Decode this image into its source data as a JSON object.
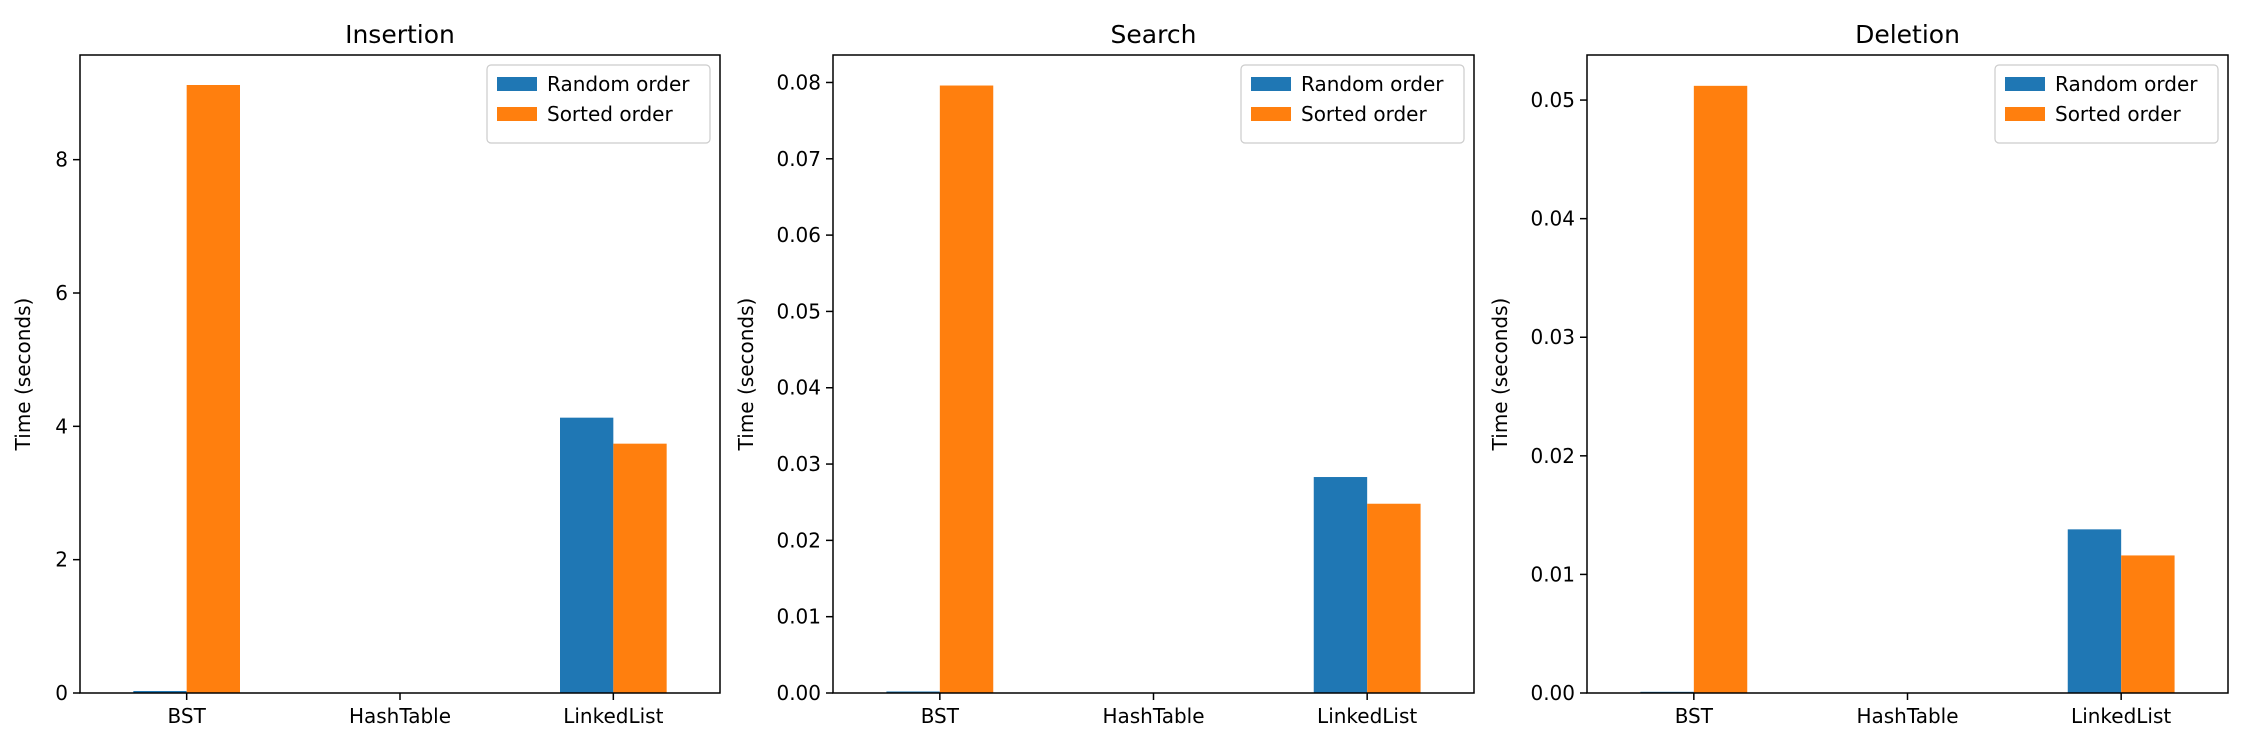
{
  "colors": {
    "random": "#1f77b4",
    "sorted": "#ff7f0e"
  },
  "chart_data": [
    {
      "type": "bar",
      "title": "Insertion",
      "xlabel": "",
      "ylabel": "Time (seconds)",
      "categories": [
        "BST",
        "HashTable",
        "LinkedList"
      ],
      "series": [
        {
          "name": "Random order",
          "values": [
            0.03,
            0.004,
            4.13
          ]
        },
        {
          "name": "Sorted order",
          "values": [
            9.12,
            0.004,
            3.74
          ]
        }
      ],
      "ylim": [
        0,
        9.57
      ],
      "yticks": [
        0,
        2,
        4,
        6,
        8
      ],
      "ytick_labels": [
        "0",
        "2",
        "4",
        "6",
        "8"
      ],
      "legend": "top-right",
      "grid": false
    },
    {
      "type": "bar",
      "title": "Search",
      "xlabel": "",
      "ylabel": "Time (seconds)",
      "categories": [
        "BST",
        "HashTable",
        "LinkedList"
      ],
      "series": [
        {
          "name": "Random order",
          "values": [
            0.0002,
            3e-05,
            0.0283
          ]
        },
        {
          "name": "Sorted order",
          "values": [
            0.0796,
            3e-05,
            0.0248
          ]
        }
      ],
      "ylim": [
        0,
        0.0836
      ],
      "yticks": [
        0,
        0.01,
        0.02,
        0.03,
        0.04,
        0.05,
        0.06,
        0.07,
        0.08
      ],
      "ytick_labels": [
        "0.00",
        "0.01",
        "0.02",
        "0.03",
        "0.04",
        "0.05",
        "0.06",
        "0.07",
        "0.08"
      ],
      "legend": "top-right",
      "grid": false
    },
    {
      "type": "bar",
      "title": "Deletion",
      "xlabel": "",
      "ylabel": "Time (seconds)",
      "categories": [
        "BST",
        "HashTable",
        "LinkedList"
      ],
      "series": [
        {
          "name": "Random order",
          "values": [
            0.0001,
            2e-05,
            0.0138
          ]
        },
        {
          "name": "Sorted order",
          "values": [
            0.0512,
            2e-05,
            0.0116
          ]
        }
      ],
      "ylim": [
        0,
        0.0538
      ],
      "yticks": [
        0,
        0.01,
        0.02,
        0.03,
        0.04,
        0.05
      ],
      "ytick_labels": [
        "0.00",
        "0.01",
        "0.02",
        "0.03",
        "0.04",
        "0.05"
      ],
      "legend": "top-right",
      "grid": false
    }
  ]
}
